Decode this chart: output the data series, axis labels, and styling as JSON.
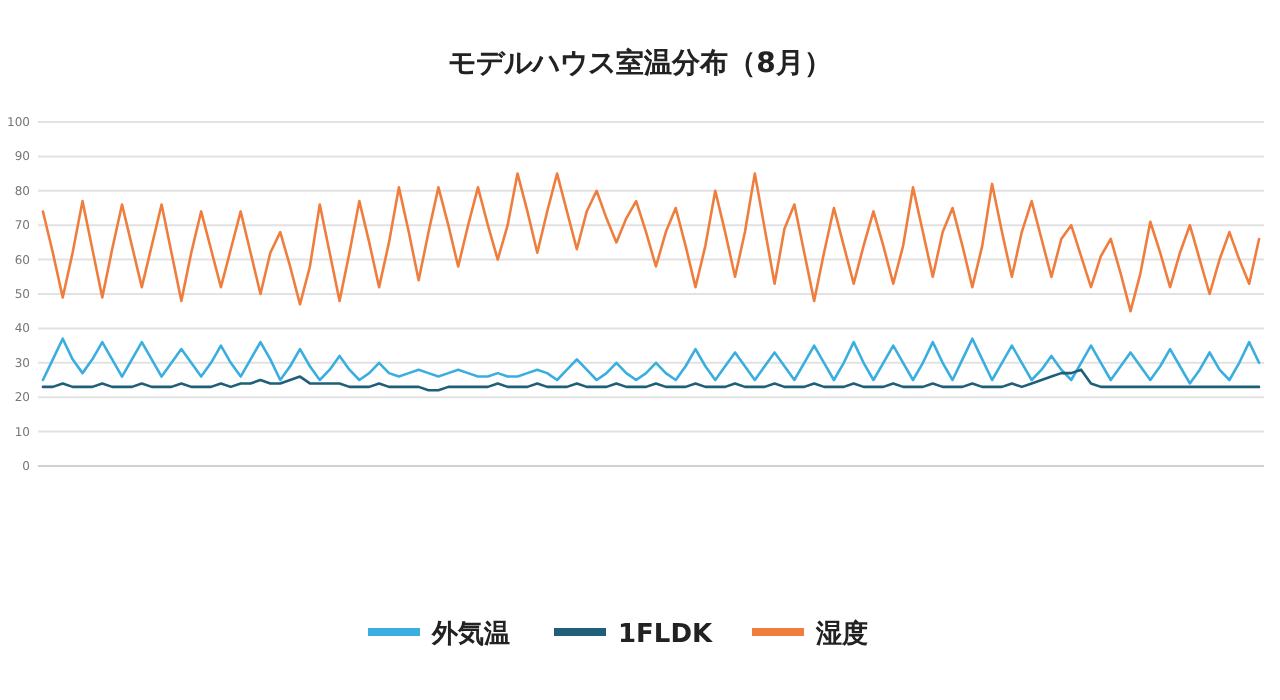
{
  "chart_data": {
    "type": "line",
    "title": "モデルハウス室温分布（8月）",
    "categories": [
      null,
      null,
      null,
      null,
      null,
      null,
      null,
      null,
      null,
      null,
      null,
      null,
      null,
      null,
      null,
      null,
      null,
      null,
      null,
      null,
      null,
      null,
      null,
      null,
      null,
      null,
      null,
      null,
      null,
      null,
      null,
      null,
      null,
      null,
      null,
      null,
      null,
      null,
      null,
      null,
      null,
      null,
      null,
      null,
      null,
      null,
      null,
      null,
      null,
      null,
      null,
      null,
      null,
      null,
      null,
      null,
      null,
      null,
      null,
      null,
      null,
      null,
      null,
      null,
      null,
      null,
      null,
      null,
      null,
      null,
      null,
      null,
      null,
      null,
      null,
      null,
      null,
      null,
      null,
      null,
      null,
      null,
      null,
      null,
      null,
      null,
      null,
      null,
      null,
      null,
      null,
      null,
      null,
      null,
      null,
      null,
      null,
      null,
      null,
      null,
      null,
      null,
      null,
      null,
      null,
      null,
      null,
      null,
      null,
      null,
      null,
      null,
      null,
      null,
      null,
      null,
      null,
      null,
      null,
      null,
      null,
      null,
      null,
      null
    ],
    "series": [
      {
        "name": "外気温",
        "color": "#3aaee0",
        "values": [
          25,
          31,
          37,
          31,
          27,
          31,
          36,
          31,
          26,
          31,
          36,
          31,
          26,
          30,
          34,
          30,
          26,
          30,
          35,
          30,
          26,
          31,
          36,
          31,
          25,
          29,
          34,
          29,
          25,
          28,
          32,
          28,
          25,
          27,
          30,
          27,
          26,
          27,
          28,
          27,
          26,
          27,
          28,
          27,
          26,
          26,
          27,
          26,
          26,
          27,
          28,
          27,
          25,
          28,
          31,
          28,
          25,
          27,
          30,
          27,
          25,
          27,
          30,
          27,
          25,
          29,
          34,
          29,
          25,
          29,
          33,
          29,
          25,
          29,
          33,
          29,
          25,
          30,
          35,
          30,
          25,
          30,
          36,
          30,
          25,
          30,
          35,
          30,
          25,
          30,
          36,
          30,
          25,
          31,
          37,
          31,
          25,
          30,
          35,
          30,
          25,
          28,
          32,
          28,
          25,
          30,
          35,
          30,
          25,
          29,
          33,
          29,
          25,
          29,
          34,
          29,
          24,
          28,
          33,
          28,
          25,
          30,
          36,
          30
        ]
      },
      {
        "name": "1FLDK",
        "color": "#1f5f7a",
        "values": [
          23,
          23,
          24,
          23,
          23,
          23,
          24,
          23,
          23,
          23,
          24,
          23,
          23,
          23,
          24,
          23,
          23,
          23,
          24,
          23,
          24,
          24,
          25,
          24,
          24,
          25,
          26,
          24,
          24,
          24,
          24,
          23,
          23,
          23,
          24,
          23,
          23,
          23,
          23,
          22,
          22,
          23,
          23,
          23,
          23,
          23,
          24,
          23,
          23,
          23,
          24,
          23,
          23,
          23,
          24,
          23,
          23,
          23,
          24,
          23,
          23,
          23,
          24,
          23,
          23,
          23,
          24,
          23,
          23,
          23,
          24,
          23,
          23,
          23,
          24,
          23,
          23,
          23,
          24,
          23,
          23,
          23,
          24,
          23,
          23,
          23,
          24,
          23,
          23,
          23,
          24,
          23,
          23,
          23,
          24,
          23,
          23,
          23,
          24,
          23,
          24,
          25,
          26,
          27,
          27,
          28,
          24,
          23,
          23,
          23,
          23,
          23,
          23,
          23,
          23,
          23,
          23,
          23,
          23,
          23,
          23,
          23,
          23,
          23
        ]
      },
      {
        "name": "湿度",
        "color": "#ef7e3e",
        "values": [
          74,
          62,
          49,
          62,
          77,
          63,
          49,
          63,
          76,
          64,
          52,
          64,
          76,
          62,
          48,
          62,
          74,
          63,
          52,
          63,
          74,
          62,
          50,
          62,
          68,
          58,
          47,
          58,
          76,
          62,
          48,
          62,
          77,
          65,
          52,
          65,
          81,
          68,
          54,
          68,
          81,
          70,
          58,
          70,
          81,
          70,
          60,
          70,
          85,
          74,
          62,
          74,
          85,
          74,
          63,
          74,
          80,
          72,
          65,
          72,
          77,
          68,
          58,
          68,
          75,
          64,
          52,
          64,
          80,
          68,
          55,
          68,
          85,
          69,
          53,
          69,
          76,
          62,
          48,
          62,
          75,
          64,
          53,
          64,
          74,
          64,
          53,
          64,
          81,
          68,
          55,
          68,
          75,
          64,
          52,
          64,
          82,
          68,
          55,
          68,
          77,
          66,
          55,
          66,
          70,
          61,
          52,
          61,
          66,
          56,
          45,
          56,
          71,
          62,
          52,
          62,
          70,
          60,
          50,
          60,
          68,
          60,
          53,
          66
        ]
      }
    ],
    "ylim": [
      0,
      100
    ],
    "yticks": [
      0,
      10,
      20,
      30,
      40,
      50,
      60,
      70,
      80,
      90,
      100
    ],
    "grid": "y",
    "legend": "bottom"
  }
}
